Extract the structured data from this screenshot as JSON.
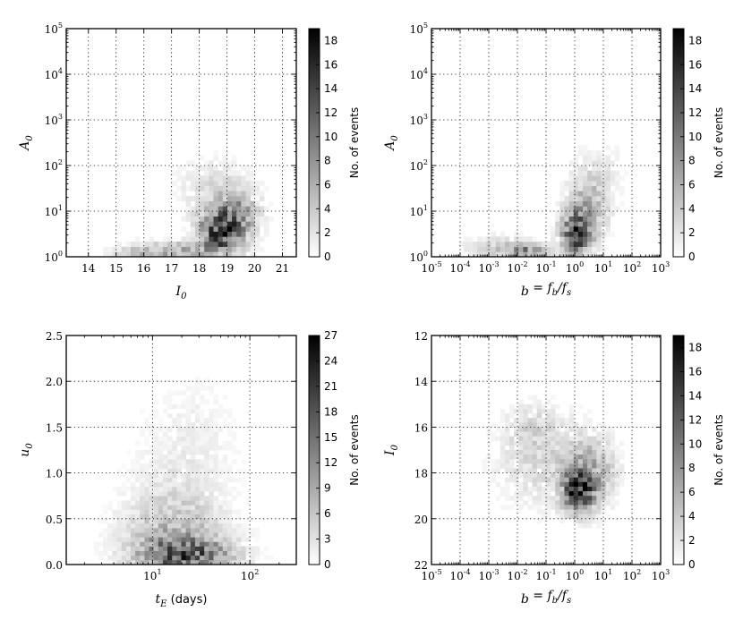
{
  "chart_data": [
    {
      "type": "heatmap",
      "panel": "A0 vs I0",
      "xlabel": "I",
      "xlabel_sub": "0",
      "ylabel": "A",
      "ylabel_sub": "0",
      "x_scale": "linear",
      "y_scale": "log",
      "xlim": [
        13.2,
        21.5
      ],
      "ylim": [
        1,
        100000
      ],
      "x_ticks": [
        14,
        15,
        16,
        17,
        18,
        19,
        20,
        21
      ],
      "x_tick_labels": [
        "14",
        "15",
        "16",
        "17",
        "18",
        "19",
        "20",
        "21"
      ],
      "y_ticks": [
        1,
        10,
        100,
        1000,
        10000,
        100000
      ],
      "y_tick_labels": [
        {
          "b": "10",
          "e": "0"
        },
        {
          "b": "10",
          "e": "1"
        },
        {
          "b": "10",
          "e": "2"
        },
        {
          "b": "10",
          "e": "3"
        },
        {
          "b": "10",
          "e": "4"
        },
        {
          "b": "10",
          "e": "5"
        }
      ],
      "grid": true,
      "colorbar": {
        "label": "No. of events",
        "min": 0,
        "max": 19,
        "ticks": [
          0,
          2,
          4,
          6,
          8,
          10,
          12,
          14,
          16,
          18
        ]
      },
      "density": {
        "nx": 50,
        "ny": 45,
        "vmax": 19,
        "x_range": [
          13.2,
          21.5
        ],
        "y_range": [
          0,
          5
        ],
        "bg": 0.0,
        "bg_seed": 11,
        "blobs": [
          {
            "x": 18.8,
            "y": 0.55,
            "sx": 0.55,
            "sy": 0.28,
            "a": 15
          },
          {
            "x": 19.3,
            "y": 0.95,
            "sx": 0.6,
            "sy": 0.35,
            "a": 7
          },
          {
            "x": 17.3,
            "y": 0.12,
            "sx": 1.2,
            "sy": 0.15,
            "a": 6
          },
          {
            "x": 16.0,
            "y": 0.08,
            "sx": 0.7,
            "sy": 0.1,
            "a": 3
          },
          {
            "x": 18.5,
            "y": 1.5,
            "sx": 0.9,
            "sy": 0.45,
            "a": 2.5
          }
        ]
      }
    },
    {
      "type": "heatmap",
      "panel": "A0 vs b",
      "xlabel": "b = f_b / f_s",
      "ylabel": "A",
      "ylabel_sub": "0",
      "x_scale": "log",
      "y_scale": "log",
      "xlim": [
        1e-05,
        1000
      ],
      "ylim": [
        1,
        100000
      ],
      "x_ticks": [
        1e-05,
        0.0001,
        0.001,
        0.01,
        0.1,
        1,
        10,
        100,
        1000
      ],
      "x_tick_labels": [
        {
          "b": "10",
          "e": "-5"
        },
        {
          "b": "10",
          "e": "-4"
        },
        {
          "b": "10",
          "e": "-3"
        },
        {
          "b": "10",
          "e": "-2"
        },
        {
          "b": "10",
          "e": "-1"
        },
        {
          "b": "10",
          "e": "0"
        },
        {
          "b": "10",
          "e": "1"
        },
        {
          "b": "10",
          "e": "2"
        },
        {
          "b": "10",
          "e": "3"
        }
      ],
      "y_ticks": [
        1,
        10,
        100,
        1000,
        10000,
        100000
      ],
      "y_tick_labels": [
        {
          "b": "10",
          "e": "0"
        },
        {
          "b": "10",
          "e": "1"
        },
        {
          "b": "10",
          "e": "2"
        },
        {
          "b": "10",
          "e": "3"
        },
        {
          "b": "10",
          "e": "4"
        },
        {
          "b": "10",
          "e": "5"
        }
      ],
      "grid": true,
      "colorbar": {
        "label": "No. of events",
        "min": 0,
        "max": 19,
        "ticks": [
          0,
          2,
          4,
          6,
          8,
          10,
          12,
          14,
          16,
          18
        ]
      },
      "density": {
        "nx": 50,
        "ny": 45,
        "vmax": 19,
        "x_range": [
          -5,
          3
        ],
        "y_range": [
          0,
          5
        ],
        "bg": 0.0,
        "bg_seed": 23,
        "blobs": [
          {
            "x": 0.05,
            "y": 0.5,
            "sx": 0.35,
            "sy": 0.3,
            "a": 14
          },
          {
            "x": 0.4,
            "y": 1.0,
            "sx": 0.5,
            "sy": 0.45,
            "a": 6
          },
          {
            "x": -1.7,
            "y": 0.12,
            "sx": 0.55,
            "sy": 0.12,
            "a": 9
          },
          {
            "x": -2.8,
            "y": 0.2,
            "sx": 0.8,
            "sy": 0.2,
            "a": 3
          },
          {
            "x": 0.8,
            "y": 1.8,
            "sx": 0.6,
            "sy": 0.5,
            "a": 2
          }
        ]
      }
    },
    {
      "type": "heatmap",
      "panel": "u0 vs tE",
      "xlabel": "t",
      "xlabel_sub": "E",
      "xlabel_suffix": "(days)",
      "ylabel": "u",
      "ylabel_sub": "0",
      "x_scale": "log",
      "y_scale": "linear",
      "xlim": [
        1.3,
        300
      ],
      "ylim": [
        0,
        2.5
      ],
      "x_ticks": [
        10,
        100
      ],
      "x_tick_labels": [
        {
          "b": "10",
          "e": "1"
        },
        {
          "b": "10",
          "e": "2"
        }
      ],
      "y_ticks": [
        0,
        0.5,
        1.0,
        1.5,
        2.0,
        2.5
      ],
      "y_tick_labels": [
        "0.0",
        "0.5",
        "1.0",
        "1.5",
        "2.0",
        "2.5"
      ],
      "grid": true,
      "colorbar": {
        "label": "No. of events",
        "min": 0,
        "max": 27,
        "ticks": [
          0,
          3,
          6,
          9,
          12,
          15,
          18,
          21,
          24,
          27
        ]
      },
      "density": {
        "nx": 50,
        "ny": 50,
        "vmax": 27,
        "x_range": [
          0.114,
          2.477
        ],
        "y_range": [
          0,
          2.5
        ],
        "bg": 0.0,
        "bg_seed": 37,
        "blobs": [
          {
            "x": 1.35,
            "y": 0.1,
            "sx": 0.32,
            "sy": 0.14,
            "a": 17
          },
          {
            "x": 1.2,
            "y": 0.35,
            "sx": 0.35,
            "sy": 0.3,
            "a": 6
          },
          {
            "x": 1.3,
            "y": 0.9,
            "sx": 0.35,
            "sy": 0.5,
            "a": 2
          },
          {
            "x": 1.45,
            "y": 1.6,
            "sx": 0.3,
            "sy": 0.4,
            "a": 0.9
          }
        ]
      }
    },
    {
      "type": "heatmap",
      "panel": "I0 vs b",
      "xlabel": "b = f_b / f_s",
      "ylabel": "I",
      "ylabel_sub": "0",
      "x_scale": "log",
      "y_scale": "linear",
      "y_inverted": true,
      "xlim": [
        1e-05,
        1000
      ],
      "ylim": [
        22,
        12
      ],
      "x_ticks": [
        1e-05,
        0.0001,
        0.001,
        0.01,
        0.1,
        1,
        10,
        100,
        1000
      ],
      "x_tick_labels": [
        {
          "b": "10",
          "e": "-5"
        },
        {
          "b": "10",
          "e": "-4"
        },
        {
          "b": "10",
          "e": "-3"
        },
        {
          "b": "10",
          "e": "-2"
        },
        {
          "b": "10",
          "e": "-1"
        },
        {
          "b": "10",
          "e": "0"
        },
        {
          "b": "10",
          "e": "1"
        },
        {
          "b": "10",
          "e": "2"
        },
        {
          "b": "10",
          "e": "3"
        }
      ],
      "y_ticks": [
        12,
        14,
        16,
        18,
        20,
        22
      ],
      "y_tick_labels": [
        "12",
        "14",
        "16",
        "18",
        "20",
        "22"
      ],
      "grid": true,
      "colorbar": {
        "label": "No. of events",
        "min": 0,
        "max": 19,
        "ticks": [
          0,
          2,
          4,
          6,
          8,
          10,
          12,
          14,
          16,
          18
        ]
      },
      "density": {
        "nx": 50,
        "ny": 50,
        "vmax": 19,
        "x_range": [
          -5,
          3
        ],
        "y_range": [
          12,
          22
        ],
        "bg": 0.0,
        "bg_seed": 53,
        "blobs": [
          {
            "x": 0.1,
            "y": 18.8,
            "sx": 0.35,
            "sy": 0.6,
            "a": 15
          },
          {
            "x": 0.6,
            "y": 18.0,
            "sx": 0.55,
            "sy": 1.0,
            "a": 6
          },
          {
            "x": -1.0,
            "y": 17.5,
            "sx": 1.2,
            "sy": 1.4,
            "a": 3
          },
          {
            "x": -1.5,
            "y": 16.0,
            "sx": 0.6,
            "sy": 0.7,
            "a": 2
          }
        ]
      }
    }
  ]
}
